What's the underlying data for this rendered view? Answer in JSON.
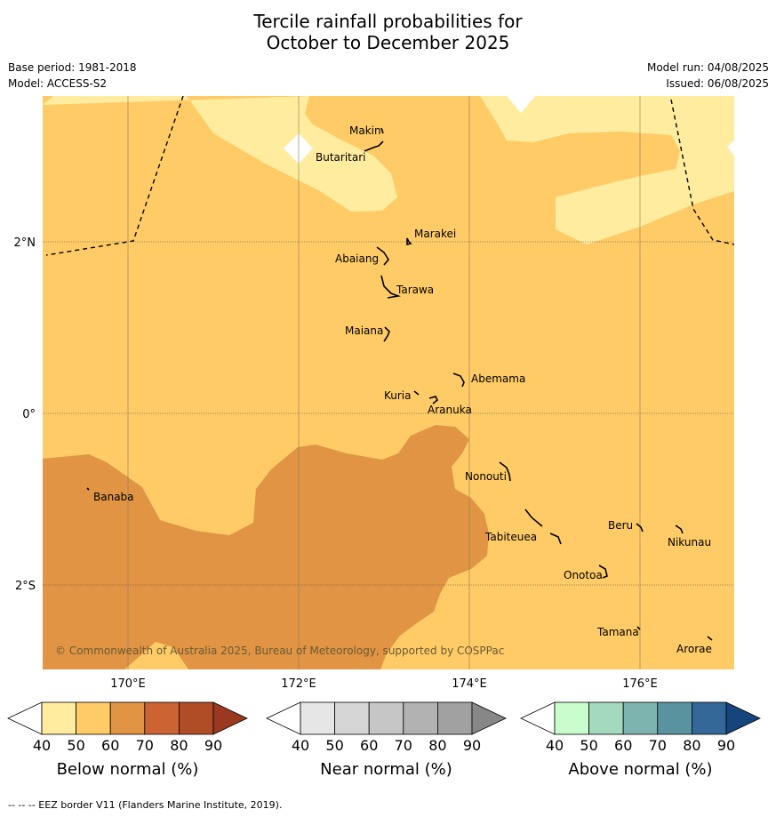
{
  "title_line1": "Tercile rainfall probabilities for",
  "title_line2": "October to December 2025",
  "meta": {
    "base_period": "Base period: 1981-2018",
    "model": "Model: ACCESS-S2",
    "model_run": "Model run: 04/08/2025",
    "issued": "Issued: 06/08/2025"
  },
  "lat_labels": [
    "2°N",
    "0°",
    "2°S"
  ],
  "lon_labels": [
    "170°E",
    "172°E",
    "174°E",
    "176°E"
  ],
  "places": {
    "makin": "Makin",
    "butaritari": "Butaritari",
    "marakei": "Marakei",
    "abaiang": "Abaiang",
    "tarawa": "Tarawa",
    "maiana": "Maiana",
    "abemama": "Abemama",
    "kuria": "Kuria",
    "aranuka": "Aranuka",
    "nonouti": "Nonouti",
    "banaba": "Banaba",
    "beru": "Beru",
    "nikunau": "Nikunau",
    "tabiteuea": "Tabiteuea",
    "onotoa": "Onotoa",
    "tamana": "Tamana",
    "arorae": "Arorae"
  },
  "copyright": "© Commonwealth of Australia 2025, Bureau of Meteorology, supported by COSPPac",
  "colorbars": [
    {
      "label": "Below normal (%)",
      "colors": [
        "#ffffff",
        "#ffec9f",
        "#fecb66",
        "#e09444",
        "#cb6332",
        "#b04c26",
        "#9b3820"
      ]
    },
    {
      "label": "Near normal (%)",
      "colors": [
        "#ffffff",
        "#e6e6e6",
        "#d5d5d5",
        "#c6c6c6",
        "#b2b2b2",
        "#a1a1a1",
        "#878787"
      ]
    },
    {
      "label": "Above normal (%)",
      "colors": [
        "#ffffff",
        "#c8fccc",
        "#a4d9bd",
        "#7db4af",
        "#5a93a0",
        "#336899",
        "#16457e"
      ]
    }
  ],
  "colorbar_ticks": [
    "40",
    "50",
    "60",
    "70",
    "80",
    "90"
  ],
  "footer": "--  --  -- EEZ border V11 (Flanders Marine Institute, 2019)."
}
